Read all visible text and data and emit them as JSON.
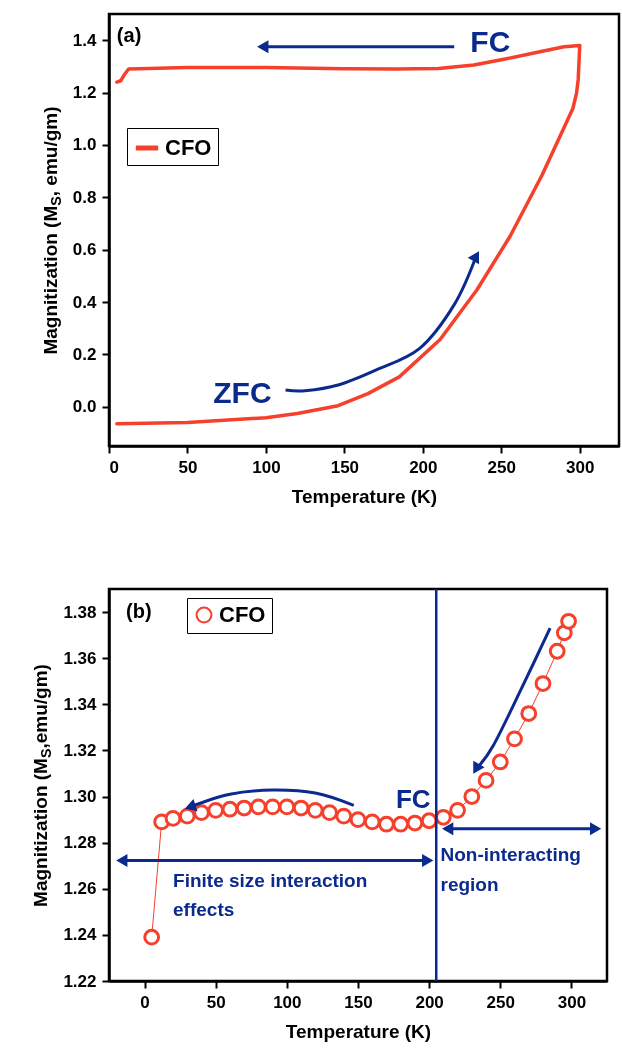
{
  "chart_data": [
    {
      "type": "line",
      "xlabel": "Temperature (K)",
      "ylabel": "Magnitization (M$_{S}$, emu/gm)",
      "xlim": [
        0,
        325
      ],
      "xticks": [
        0,
        50,
        100,
        150,
        200,
        250,
        300
      ],
      "ylim": [
        -0.15,
        1.5
      ],
      "yticks": [
        {
          "value": 0,
          "label": "0.0"
        },
        0.2,
        0.4,
        0.6,
        0.8,
        {
          "value": 1,
          "label": "1.0"
        },
        1.2,
        1.4
      ],
      "legend": "top left",
      "line_style": "solid",
      "annotations": [
        "(a)",
        "FC",
        "ZFC"
      ],
      "series": [
        {
          "name": "CFO",
          "color": "#f5402c",
          "x": [
            5,
            50,
            100,
            120,
            146,
            165,
            185,
            211,
            234.4,
            255.6,
            276,
            295.6,
            298,
            299,
            300,
            290,
            270,
            250,
            232.5,
            210,
            182.5,
            150,
            100,
            50,
            12.5,
            10,
            7.5,
            5
          ],
          "values": [
            -0.065,
            -0.06,
            -0.042,
            -0.026,
            0.004,
            0.05,
            0.114,
            0.257,
            0.446,
            0.651,
            0.885,
            1.139,
            1.2,
            1.25,
            1.38,
            1.375,
            1.35,
            1.325,
            1.305,
            1.292,
            1.29,
            1.291,
            1.296,
            1.296,
            1.29,
            1.27,
            1.245,
            1.24
          ]
        }
      ]
    },
    {
      "type": "line",
      "xlabel": "Temperature (K)",
      "ylabel": "Magnitization (M$_{S}$,emu/gm)",
      "xlim": [
        -25,
        325
      ],
      "xticks": [
        0,
        50,
        100,
        150,
        200,
        250,
        300
      ],
      "ylim": [
        1.22,
        1.39
      ],
      "yticks": [
        1.22,
        1.24,
        1.26,
        1.28,
        {
          "value": 1.3,
          "label": "1.30"
        },
        1.32,
        1.34,
        1.36,
        1.38
      ],
      "legend": "top left",
      "line_style": "solid",
      "marker": "circle",
      "annotations": [
        "(b)",
        "Finite size interaction effects",
        "Non-interacting region"
      ],
      "ref_lines": [
        {
          "axis": "x",
          "value": 205,
          "label": "FC",
          "color": "#0b2a8e"
        }
      ],
      "series": [
        {
          "name": "CFO",
          "color": "#f5402c",
          "x": [
            5,
            12,
            20,
            30,
            40,
            50,
            60,
            70,
            80,
            90,
            100,
            110,
            120,
            130,
            140,
            150,
            160,
            170,
            180,
            190,
            200,
            210,
            220,
            230,
            240,
            250,
            260,
            270,
            280,
            290,
            295,
            298
          ],
          "values": [
            1.239,
            1.289,
            1.2905,
            1.2915,
            1.293,
            1.294,
            1.2945,
            1.295,
            1.2955,
            1.2955,
            1.2955,
            1.295,
            1.294,
            1.293,
            1.2915,
            1.29,
            1.289,
            1.288,
            1.288,
            1.2885,
            1.2895,
            1.291,
            1.294,
            1.3,
            1.307,
            1.315,
            1.325,
            1.336,
            1.349,
            1.363,
            1.371,
            1.376
          ]
        }
      ]
    }
  ]
}
